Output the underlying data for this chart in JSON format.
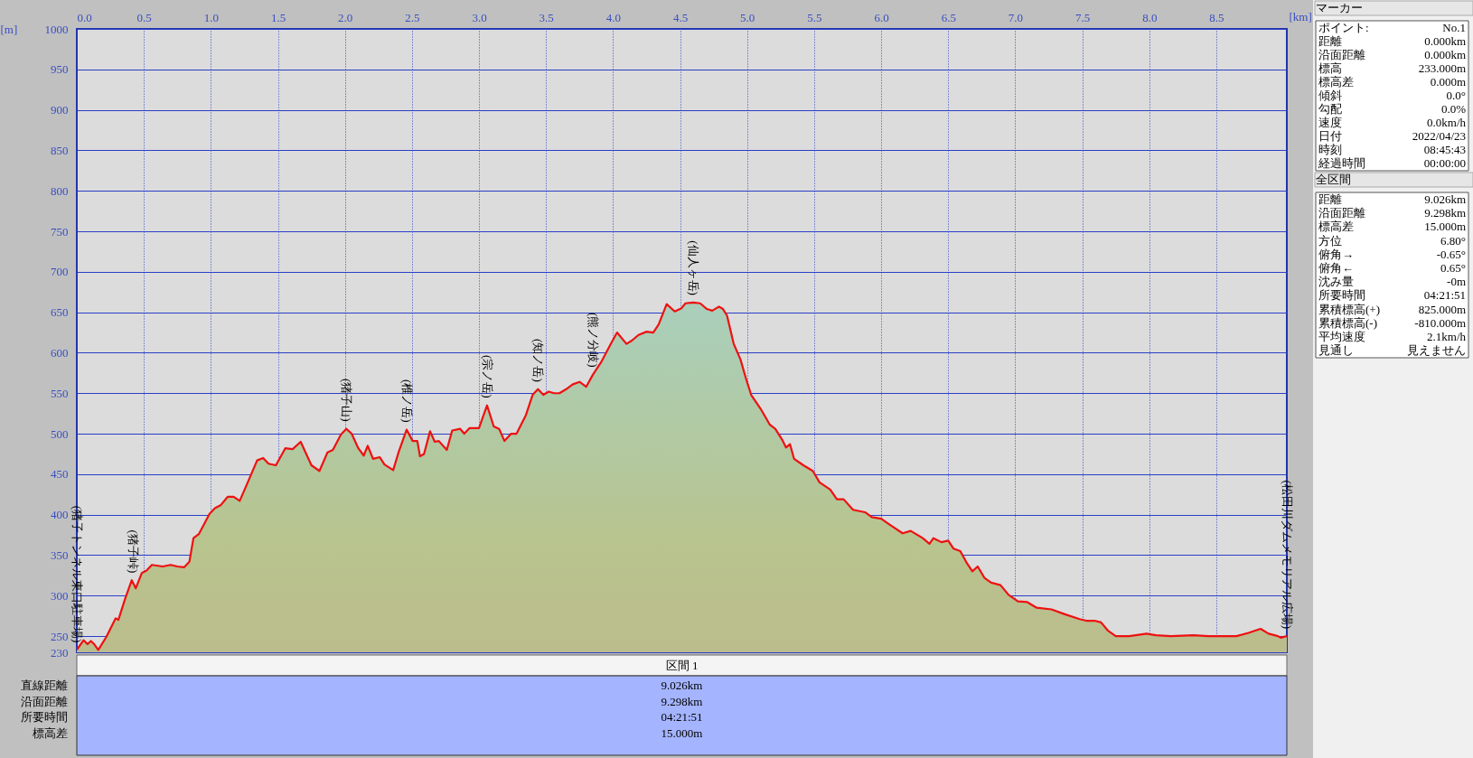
{
  "chart_data": {
    "type": "area",
    "xlabel": "[km]",
    "ylabel": "[m]",
    "x": [
      0,
      0.05,
      0.08,
      0.105,
      0.13,
      0.16,
      0.22,
      0.29,
      0.31,
      0.36,
      0.41,
      0.44,
      0.485,
      0.52,
      0.56,
      0.64,
      0.7,
      0.75,
      0.8,
      0.84,
      0.87,
      0.91,
      0.99,
      1.03,
      1.075,
      1.125,
      1.17,
      1.215,
      1.265,
      1.345,
      1.39,
      1.43,
      1.485,
      1.555,
      1.61,
      1.67,
      1.75,
      1.81,
      1.87,
      1.91,
      1.97,
      2.01,
      2.05,
      2.1,
      2.14,
      2.17,
      2.21,
      2.26,
      2.295,
      2.36,
      2.4,
      2.46,
      2.505,
      2.54,
      2.56,
      2.59,
      2.635,
      2.67,
      2.7,
      2.76,
      2.8,
      2.86,
      2.89,
      2.93,
      3.0,
      3.06,
      3.11,
      3.15,
      3.19,
      3.24,
      3.28,
      3.35,
      3.4,
      3.44,
      3.48,
      3.52,
      3.56,
      3.6,
      3.65,
      3.7,
      3.75,
      3.8,
      3.85,
      3.91,
      3.98,
      4.03,
      4.1,
      4.14,
      4.19,
      4.25,
      4.3,
      4.34,
      4.4,
      4.46,
      4.51,
      4.54,
      4.6,
      4.65,
      4.7,
      4.74,
      4.79,
      4.82,
      4.85,
      4.9,
      4.95,
      4.99,
      5.03,
      5.1,
      5.17,
      5.21,
      5.26,
      5.29,
      5.32,
      5.35,
      5.42,
      5.49,
      5.54,
      5.62,
      5.67,
      5.72,
      5.79,
      5.88,
      5.93,
      6.0,
      6.07,
      6.16,
      6.22,
      6.31,
      6.36,
      6.39,
      6.45,
      6.5,
      6.54,
      6.59,
      6.64,
      6.68,
      6.72,
      6.77,
      6.82,
      6.89,
      6.95,
      7.02,
      7.09,
      7.16,
      7.27,
      7.37,
      7.48,
      7.53,
      7.59,
      7.64,
      7.69,
      7.75,
      7.85,
      7.98,
      8.05,
      8.16,
      8.33,
      8.44,
      8.65,
      8.74,
      8.83,
      8.89,
      8.96,
      8.98,
      9.026
    ],
    "series": [
      {
        "color": "#ee1111",
        "values": [
          233,
          245,
          240,
          244,
          240,
          233,
          249,
          272,
          270,
          296,
          319,
          309,
          328,
          331,
          338,
          336,
          338,
          336,
          335,
          342,
          371,
          376,
          401,
          408,
          412,
          422,
          422,
          417,
          436,
          467,
          470,
          463,
          461,
          482,
          481,
          490,
          461,
          454,
          477,
          480,
          499,
          506,
          500,
          482,
          473,
          485,
          469,
          471,
          462,
          455,
          477,
          505,
          491,
          491,
          472,
          475,
          503,
          490,
          491,
          480,
          504,
          506,
          500,
          507,
          507,
          535,
          509,
          506,
          491,
          500,
          500,
          523,
          548,
          555,
          548,
          552,
          550,
          550,
          555,
          561,
          564,
          558,
          573,
          588,
          610,
          625,
          611,
          615,
          622,
          626,
          625,
          635,
          660,
          651,
          655,
          661,
          662,
          661,
          654,
          652,
          657,
          654,
          646,
          611,
          592,
          569,
          548,
          531,
          511,
          506,
          493,
          483,
          487,
          469,
          461,
          454,
          440,
          431,
          419,
          419,
          406,
          403,
          397,
          395,
          387,
          377,
          380,
          371,
          364,
          371,
          366,
          368,
          358,
          355,
          340,
          330,
          336,
          322,
          316,
          313,
          301,
          293,
          292,
          285,
          283,
          277,
          271,
          269,
          269,
          267,
          257,
          250,
          250,
          253,
          251,
          250,
          251,
          250,
          250,
          254,
          259,
          253,
          250,
          248,
          250
        ]
      }
    ],
    "xlim": [
      0,
      9.026
    ],
    "ylim": [
      230,
      1000
    ],
    "xticks": [
      {
        "value": 0,
        "label": "0.0"
      },
      {
        "value": 0.5,
        "label": "0.5"
      },
      {
        "value": 1,
        "label": "1.0"
      },
      {
        "value": 1.5,
        "label": "1.5"
      },
      {
        "value": 2,
        "label": "2.0"
      },
      {
        "value": 2.5,
        "label": "2.5"
      },
      {
        "value": 3,
        "label": "3.0"
      },
      {
        "value": 3.5,
        "label": "3.5"
      },
      {
        "value": 4,
        "label": "4.0"
      },
      {
        "value": 4.5,
        "label": "4.5"
      },
      {
        "value": 5,
        "label": "5.0"
      },
      {
        "value": 5.5,
        "label": "5.5"
      },
      {
        "value": 6,
        "label": "6.0"
      },
      {
        "value": 6.5,
        "label": "6.5"
      },
      {
        "value": 7,
        "label": "7.0"
      },
      {
        "value": 7.5,
        "label": "7.5"
      },
      {
        "value": 8,
        "label": "8.0"
      },
      {
        "value": 8.5,
        "label": "8.5"
      }
    ],
    "yticks": [
      230,
      250,
      300,
      350,
      400,
      450,
      500,
      550,
      600,
      650,
      700,
      750,
      800,
      850,
      900,
      950,
      1000
    ],
    "grid": true,
    "annotations": [
      {
        "text": "(猪子トンネル東口駐車場)",
        "x": 0,
        "y": 233
      },
      {
        "text": "(猪子峠)",
        "x": 0.42,
        "y": 319
      },
      {
        "text": "(猪子山)",
        "x": 2.01,
        "y": 506
      },
      {
        "text": "(椎ノ岳)",
        "x": 2.46,
        "y": 505
      },
      {
        "text": "(宗ノ岳)",
        "x": 3.06,
        "y": 535
      },
      {
        "text": "(知ノ岳)",
        "x": 3.44,
        "y": 555
      },
      {
        "text": "(熊ノ分岐)",
        "x": 3.85,
        "y": 573
      },
      {
        "text": "(仙人ヶ岳)",
        "x": 4.6,
        "y": 662
      },
      {
        "text": "(松田川ダムメモリアル広場)",
        "x": 9.026,
        "y": 250
      },
      "マーカー",
      "ポイント: No.1",
      "距離 0.000km",
      "沿面距離 0.000km",
      "標高 233.000m",
      "標高差 0.000m",
      "傾斜 0.0°",
      "勾配 0.0%",
      "速度 0.0km/h",
      "日付 2022/04/23",
      "時刻 08:45:43",
      "経過時間 00:00:00",
      "全区間",
      "距離 9.026km",
      "沿面距離 9.298km",
      "標高差 15.000m",
      "方位 6.80°",
      "俯角→ -0.65°",
      "俯角← 0.65°",
      "沈み量 -0m",
      "所要時間 04:21:51",
      "累積標高(+) 825.000m",
      "累積標高(-) -810.000m",
      "平均速度 2.1km/h",
      "見通し 見えません",
      "区間 1",
      "直線距離 9.026km",
      "沿面距離 9.298km",
      "所要時間 04:21:51",
      "標高差 15.000m"
    ]
  }
}
